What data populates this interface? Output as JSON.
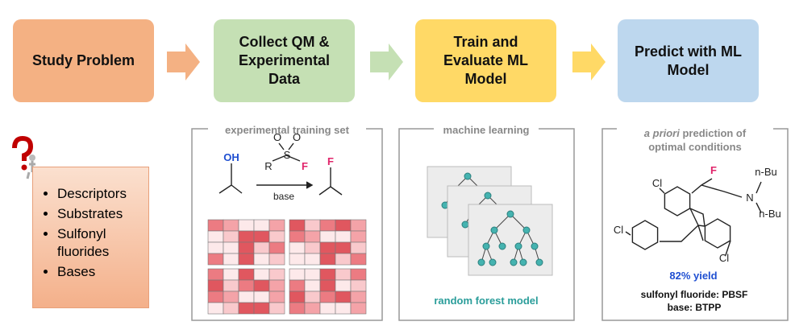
{
  "steps": [
    {
      "label": "Study Problem"
    },
    {
      "label": "Collect QM & Experimental Data"
    },
    {
      "label": "Train and Evaluate ML Model"
    },
    {
      "label": "Predict with ML Model"
    }
  ],
  "problem_list": [
    "Descriptors",
    "Substrates",
    "Sulfonyl fluorides",
    "Bases"
  ],
  "panels": [
    {
      "title": "experimental training set",
      "reaction": {
        "reactant_atom": "OH",
        "reagent_atoms": [
          "O",
          "O",
          "S",
          "R",
          "F"
        ],
        "condition": "base",
        "product_atom": "F"
      }
    },
    {
      "title": "machine learning",
      "caption": "random forest model"
    },
    {
      "title": {
        "italic": "a priori",
        "rest": [
          "prediction of",
          "optimal conditions"
        ]
      },
      "molecule_atoms": [
        "Cl",
        "F",
        "N",
        "n-Bu",
        "n-Bu",
        "Cl",
        "Cl"
      ],
      "result": "82% yield",
      "conditions": [
        "sulfonyl fluoride: PBSF",
        "base: BTPP"
      ]
    }
  ]
}
